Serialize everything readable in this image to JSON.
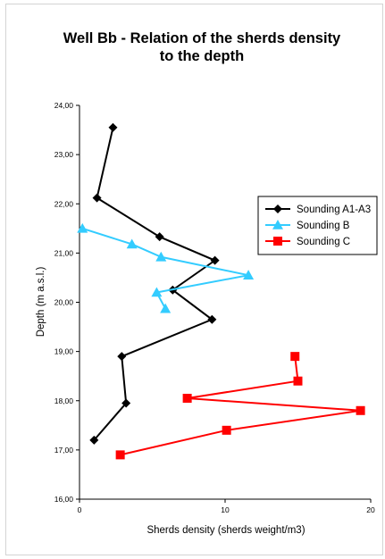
{
  "chart_data": {
    "type": "scatter",
    "title_lines": [
      "Well Bb - Relation of the sherds density",
      "to the depth"
    ],
    "xlabel": "Sherds density (sherds weight/m3)",
    "ylabel": "Depth (m a.s.l.)",
    "xlim": [
      0,
      20
    ],
    "ylim": [
      16,
      24
    ],
    "x_ticks": [
      0,
      10,
      20
    ],
    "y_ticks": [
      "16,00",
      "17,00",
      "18,00",
      "19,00",
      "20,00",
      "21,00",
      "22,00",
      "23,00",
      "24,00"
    ],
    "grid": false,
    "legend_position": "right",
    "series": [
      {
        "name": "Sounding A1-A3",
        "color": "#000000",
        "marker": "diamond",
        "points": [
          [
            2.3,
            23.55
          ],
          [
            1.2,
            22.12
          ],
          [
            5.5,
            21.33
          ],
          [
            9.3,
            20.85
          ],
          [
            6.4,
            20.25
          ],
          [
            9.1,
            19.65
          ],
          [
            2.9,
            18.9
          ],
          [
            3.2,
            17.95
          ],
          [
            1.0,
            17.2
          ]
        ]
      },
      {
        "name": "Sounding B",
        "color": "#33CCFF",
        "marker": "triangle",
        "points": [
          [
            0.2,
            21.5
          ],
          [
            3.6,
            21.18
          ],
          [
            5.6,
            20.92
          ],
          [
            11.6,
            20.55
          ],
          [
            5.3,
            20.2
          ],
          [
            5.9,
            19.87
          ]
        ]
      },
      {
        "name": "Sounding C",
        "color": "#FF0000",
        "marker": "square",
        "points": [
          [
            14.8,
            18.9
          ],
          [
            15.0,
            18.4
          ],
          [
            7.4,
            18.05
          ],
          [
            19.3,
            17.8
          ],
          [
            10.1,
            17.4
          ],
          [
            2.8,
            16.9
          ]
        ]
      }
    ]
  }
}
